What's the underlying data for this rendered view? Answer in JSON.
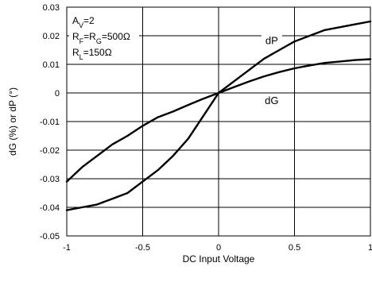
{
  "chart_data": {
    "type": "line",
    "xlabel": "DC Input Voltage",
    "ylabel": "dG (%) or dP (°)",
    "xlim": [
      -1,
      1
    ],
    "ylim": [
      -0.05,
      0.03
    ],
    "xticks": [
      -1,
      -0.5,
      0,
      0.5,
      1
    ],
    "xtick_labels": [
      "-1",
      "-0.5",
      "0",
      "0.5",
      "1"
    ],
    "yticks": [
      0.03,
      0.02,
      0.01,
      0,
      -0.01,
      -0.02,
      -0.03,
      -0.04,
      -0.05
    ],
    "ytick_labels": [
      "0.03",
      "0.02",
      "0.01",
      "0",
      "-0.01",
      "-0.02",
      "-0.03",
      "-0.04",
      "-0.05"
    ],
    "grid": true,
    "conditions": {
      "av": {
        "sym": "A",
        "sub": "V",
        "rest": "=2"
      },
      "rf_rg": {
        "sym": "R",
        "sub": "F",
        "mid": "=R",
        "sub2": "G",
        "rest": "=500Ω"
      },
      "rl": {
        "sym": "R",
        "sub": "L",
        "rest": "=150Ω"
      }
    },
    "series": [
      {
        "name": "dP",
        "x": [
          -1,
          -0.9,
          -0.8,
          -0.7,
          -0.6,
          -0.5,
          -0.4,
          -0.3,
          -0.2,
          -0.1,
          0,
          0.1,
          0.2,
          0.3,
          0.4,
          0.5,
          0.6,
          0.7,
          0.8,
          0.9,
          1
        ],
        "values": [
          -0.041,
          -0.04,
          -0.039,
          -0.037,
          -0.035,
          -0.031,
          -0.027,
          -0.022,
          -0.016,
          -0.008,
          0.0,
          0.004,
          0.008,
          0.012,
          0.015,
          0.018,
          0.02,
          0.022,
          0.023,
          0.024,
          0.025
        ]
      },
      {
        "name": "dG",
        "x": [
          -1,
          -0.9,
          -0.8,
          -0.7,
          -0.6,
          -0.5,
          -0.4,
          -0.3,
          -0.2,
          -0.1,
          0,
          0.1,
          0.2,
          0.3,
          0.4,
          0.5,
          0.6,
          0.7,
          0.8,
          0.9,
          1
        ],
        "values": [
          -0.031,
          -0.026,
          -0.022,
          -0.018,
          -0.015,
          -0.0115,
          -0.0085,
          -0.0065,
          -0.0042,
          -0.002,
          0.0,
          0.002,
          0.004,
          0.0058,
          0.0073,
          0.0086,
          0.0096,
          0.0105,
          0.011,
          0.0115,
          0.0118
        ]
      }
    ]
  }
}
